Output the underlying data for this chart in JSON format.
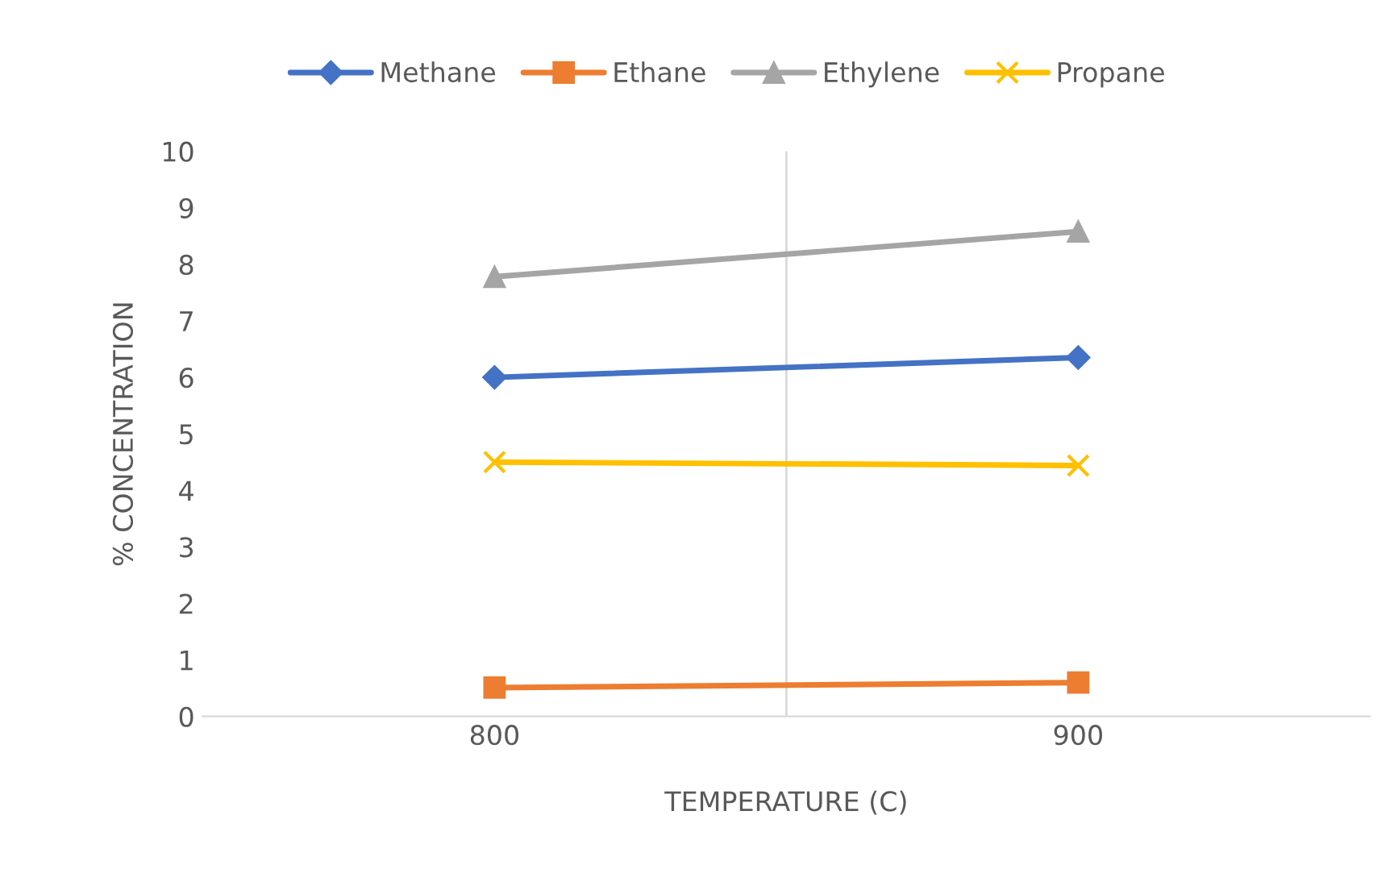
{
  "chart_data": {
    "type": "line",
    "xlabel": "TEMPERATURE (C)",
    "ylabel": "% CONCENTRATION",
    "categories": [
      "800",
      "900"
    ],
    "series": [
      {
        "name": "Methane",
        "color": "#4472c4",
        "marker": "diamond",
        "values": [
          6.0,
          6.35
        ]
      },
      {
        "name": "Ethane",
        "color": "#ed7d31",
        "marker": "square",
        "values": [
          0.51,
          0.6
        ]
      },
      {
        "name": "Ethylene",
        "color": "#a5a5a5",
        "marker": "triangle",
        "values": [
          7.78,
          8.58
        ]
      },
      {
        "name": "Propane",
        "color": "#ffc000",
        "marker": "cross",
        "values": [
          4.5,
          4.44
        ]
      }
    ],
    "ylim": [
      0,
      10
    ],
    "yticks": [
      0,
      1,
      2,
      3,
      4,
      5,
      6,
      7,
      8,
      9,
      10
    ],
    "grid": "x",
    "legend": "top"
  }
}
